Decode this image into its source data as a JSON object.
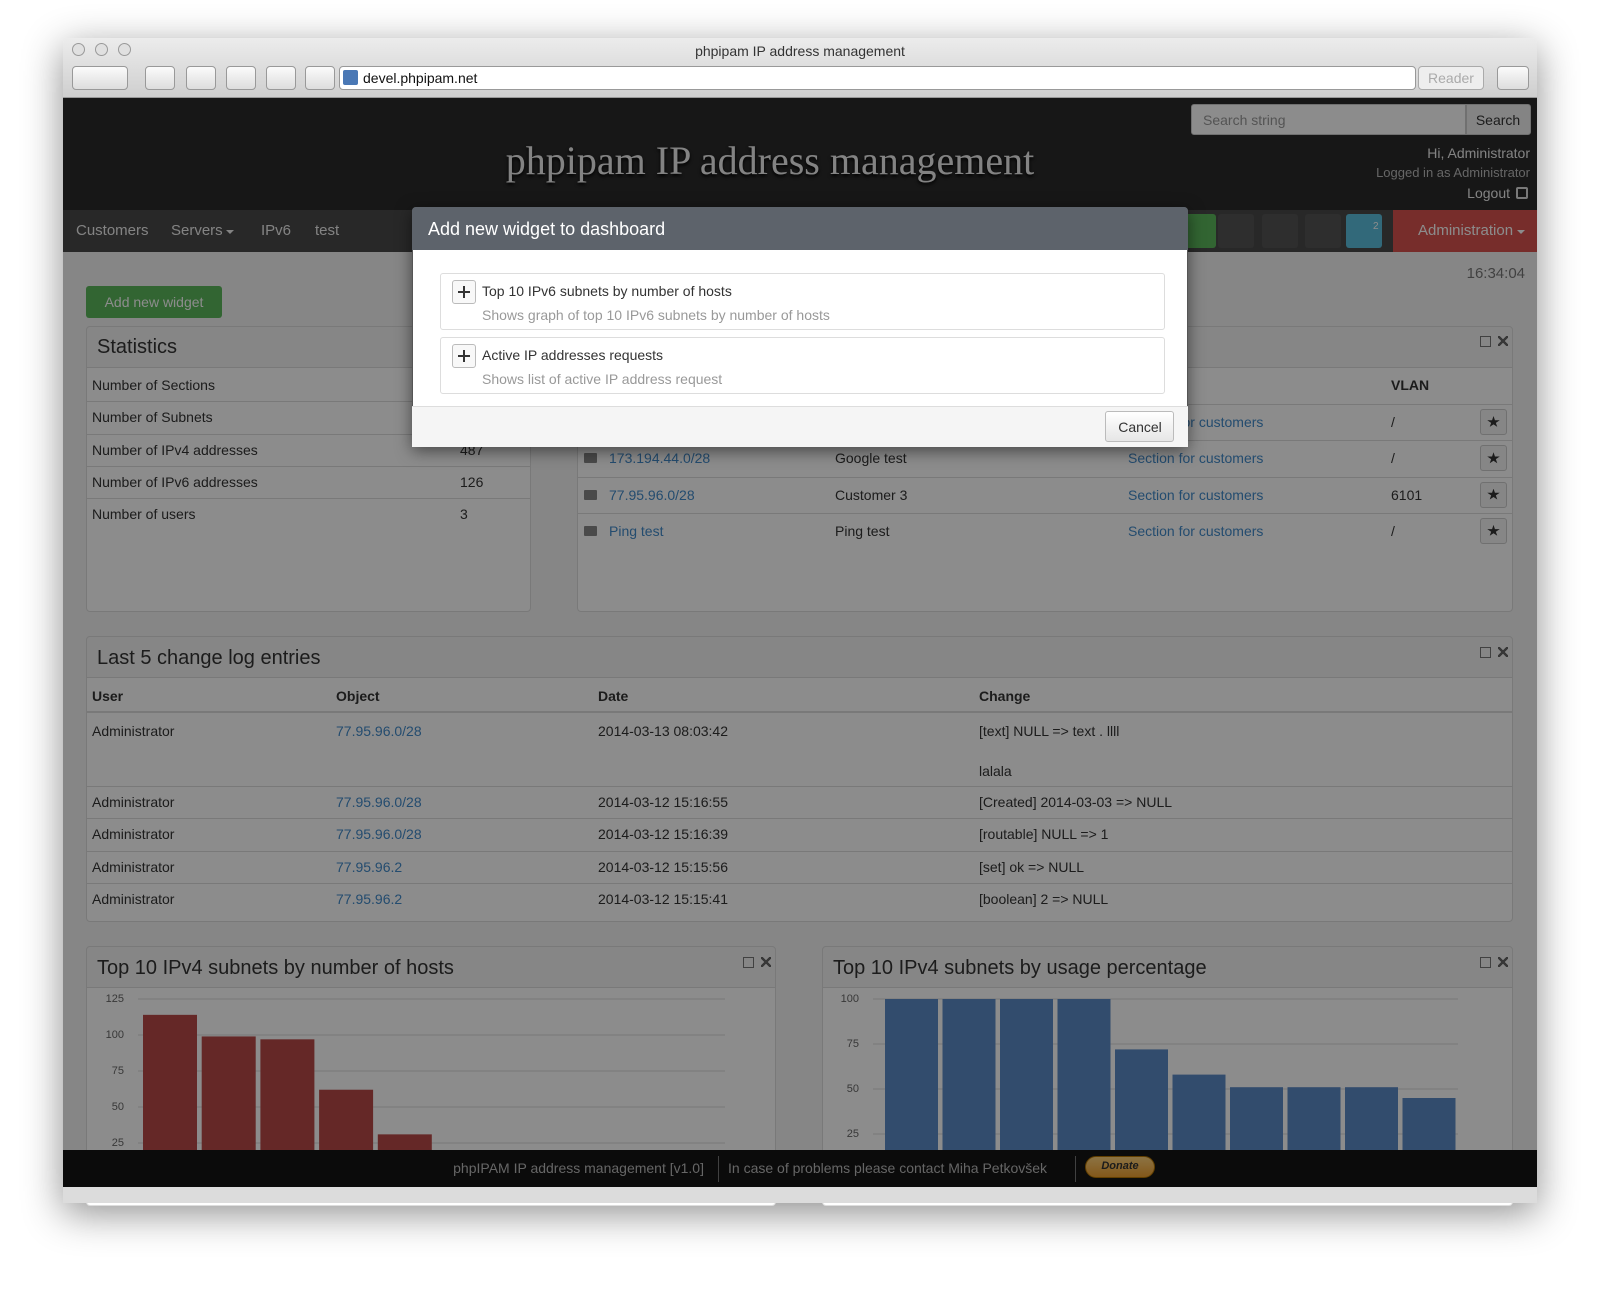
{
  "browser": {
    "title": "phpipam IP address management",
    "url": "devel.phpipam.net",
    "reader": "Reader"
  },
  "header": {
    "title": "phpipam IP address management",
    "search_placeholder": "Search string",
    "search_button": "Search",
    "greeting": "Hi, Administrator",
    "logged_in": "Logged in as Administrator",
    "logout": "Logout"
  },
  "nav": {
    "items": [
      "Customers",
      "Servers",
      "IPv6",
      "test"
    ],
    "mail_badge": "2",
    "admin": "Administration"
  },
  "clock": "16:34:04",
  "add_widget": "Add new widget",
  "statistics": {
    "title": "Statistics",
    "rows": [
      {
        "label": "Number of Sections"
      },
      {
        "label": "Number of Subnets"
      },
      {
        "label": "Number of IPv4 addresses",
        "value": 487
      },
      {
        "label": "Number of IPv6 addresses",
        "value": 126
      },
      {
        "label": "Number of users",
        "value": 3
      }
    ]
  },
  "favourites": {
    "vlan_header": "VLAN",
    "rows": [
      {
        "section": "Section for customers",
        "vlan": "/"
      },
      {
        "subnet": "173.194.44.0/28",
        "description": "Google test",
        "section": "Section for customers",
        "vlan": "/"
      },
      {
        "subnet": "77.95.96.0/28",
        "description": "Customer 3",
        "section": "Section for customers",
        "vlan": "6101"
      },
      {
        "subnet": "Ping test",
        "description": "Ping test",
        "section": "Section for customers",
        "vlan": "/"
      }
    ]
  },
  "changelog": {
    "title": "Last 5 change log entries",
    "columns": [
      "User",
      "Object",
      "Date",
      "Change"
    ],
    "rows": [
      {
        "user": "Administrator",
        "object": "77.95.96.0/28",
        "date": "2014-03-13 08:03:42",
        "change": [
          "[text] NULL => text . llll",
          "lalala"
        ]
      },
      {
        "user": "Administrator",
        "object": "77.95.96.0/28",
        "date": "2014-03-12 15:16:55",
        "change": [
          "[Created] 2014-03-03 => NULL"
        ]
      },
      {
        "user": "Administrator",
        "object": "77.95.96.0/28",
        "date": "2014-03-12 15:16:39",
        "change": [
          "[routable] NULL => 1"
        ]
      },
      {
        "user": "Administrator",
        "object": "77.95.96.2",
        "date": "2014-03-12 15:15:56",
        "change": [
          "[set] ok => NULL"
        ]
      },
      {
        "user": "Administrator",
        "object": "77.95.96.2",
        "date": "2014-03-12 15:15:41",
        "change": [
          "[boolean] 2 => NULL"
        ]
      }
    ]
  },
  "chart_data": [
    {
      "type": "bar",
      "title": "Top 10 IPv4 subnets by number of hosts",
      "categories": [
        null,
        null,
        null,
        null,
        null
      ],
      "values": [
        114,
        99,
        97,
        62,
        31
      ],
      "color": "#b94a48",
      "ylim": [
        0,
        125
      ],
      "yticks": [
        25,
        50,
        75,
        100,
        125
      ],
      "grid": true
    },
    {
      "type": "bar",
      "title": "Top 10 IPv4 subnets by usage percentage",
      "categories": [
        null,
        null,
        null,
        null,
        null,
        null,
        null,
        null,
        null,
        null
      ],
      "values": [
        100,
        100,
        100,
        100,
        72,
        58,
        51,
        51,
        51,
        45
      ],
      "color": "#5b8ac6",
      "ylim": [
        0,
        100
      ],
      "yticks": [
        25,
        50,
        75,
        100
      ],
      "grid": true
    }
  ],
  "modal": {
    "title": "Add new widget to dashboard",
    "items": [
      {
        "title": "Top 10 IPv6 subnets by number of hosts",
        "description": "Shows graph of top 10 IPv6 subnets by number of hosts"
      },
      {
        "title": "Active IP addresses requests",
        "description": "Shows list of active IP address request"
      }
    ],
    "cancel": "Cancel"
  },
  "footer": {
    "app": "phpIPAM IP address management [v1.0]",
    "contact": "In case of problems please contact Miha Petkovšek",
    "donate": "Donate"
  }
}
